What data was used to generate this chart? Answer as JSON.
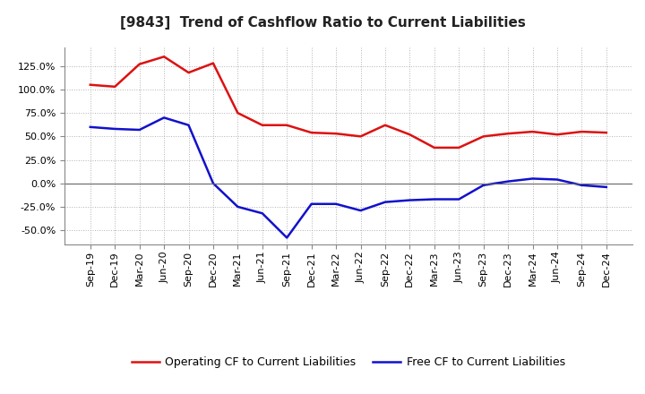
{
  "title": "[9843]  Trend of Cashflow Ratio to Current Liabilities",
  "x_labels": [
    "Sep-19",
    "Dec-19",
    "Mar-20",
    "Jun-20",
    "Sep-20",
    "Dec-20",
    "Mar-21",
    "Jun-21",
    "Sep-21",
    "Dec-21",
    "Mar-22",
    "Jun-22",
    "Sep-22",
    "Dec-22",
    "Mar-23",
    "Jun-23",
    "Sep-23",
    "Dec-23",
    "Mar-24",
    "Jun-24",
    "Sep-24",
    "Dec-24"
  ],
  "operating_cf": [
    1.05,
    1.03,
    1.27,
    1.35,
    1.18,
    1.28,
    0.75,
    0.62,
    0.62,
    0.54,
    0.53,
    0.5,
    0.62,
    0.52,
    0.38,
    0.38,
    0.5,
    0.53,
    0.55,
    0.52,
    0.55,
    0.54
  ],
  "free_cf": [
    0.6,
    0.58,
    0.57,
    0.7,
    0.62,
    0.0,
    -0.25,
    -0.32,
    -0.58,
    -0.22,
    -0.22,
    -0.29,
    -0.2,
    -0.18,
    -0.17,
    -0.17,
    -0.02,
    0.02,
    0.05,
    0.04,
    -0.02,
    -0.04
  ],
  "operating_color": "#dd1111",
  "free_color": "#1111cc",
  "background_color": "#ffffff",
  "plot_bg_color": "#ffffff",
  "grid_color": "#aaaaaa",
  "y_ticks": [
    -0.5,
    -0.25,
    0.0,
    0.25,
    0.5,
    0.75,
    1.0,
    1.25
  ],
  "ylim": [
    -0.65,
    1.45
  ],
  "legend_op": "Operating CF to Current Liabilities",
  "legend_free": "Free CF to Current Liabilities",
  "title_fontsize": 11,
  "tick_fontsize": 8,
  "linewidth": 1.8
}
